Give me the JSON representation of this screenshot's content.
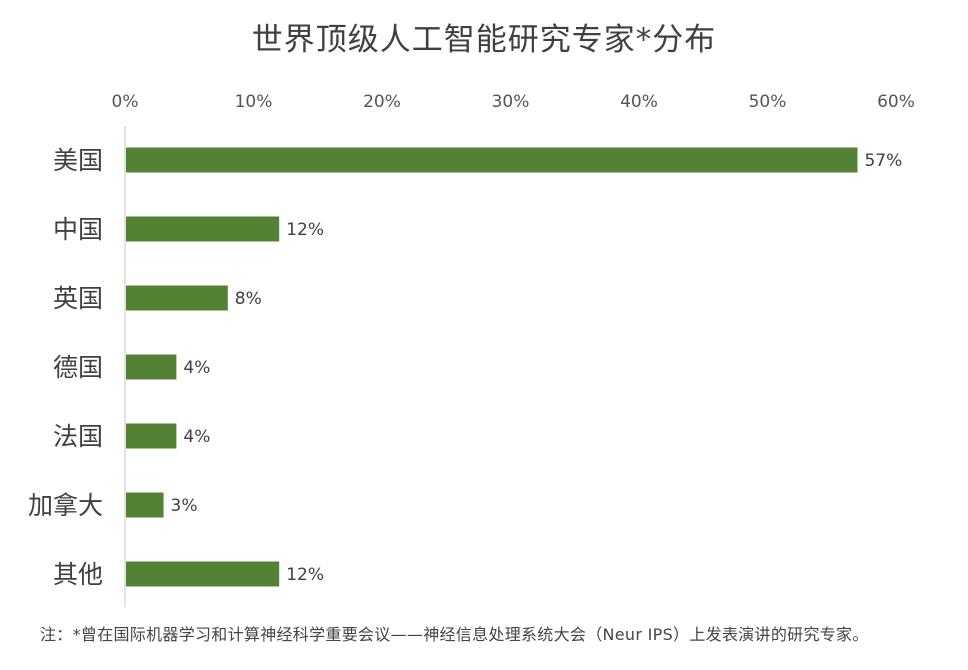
{
  "chart_data": {
    "type": "bar",
    "orientation": "horizontal",
    "title": "世界顶级人工智能研究专家*分布",
    "categories": [
      "美国",
      "中国",
      "英国",
      "德国",
      "法国",
      "加拿大",
      "其他"
    ],
    "values": [
      57,
      12,
      8,
      4,
      4,
      3,
      12
    ],
    "data_labels": [
      "57%",
      "12%",
      "8%",
      "4%",
      "4%",
      "3%",
      "12%"
    ],
    "xticks": [
      0,
      10,
      20,
      30,
      40,
      50,
      60
    ],
    "xtick_labels": [
      "0%",
      "10%",
      "20%",
      "30%",
      "40%",
      "50%",
      "60%"
    ],
    "xlim": [
      0,
      60
    ],
    "x_axis_position": "top",
    "grid": false,
    "legend": false,
    "bar_color": "#548235"
  },
  "footnote": "注：*曾在国际机器学习和计算神经科学重要会议——神经信息处理系统大会（Neur IPS）上发表演讲的研究专家。"
}
